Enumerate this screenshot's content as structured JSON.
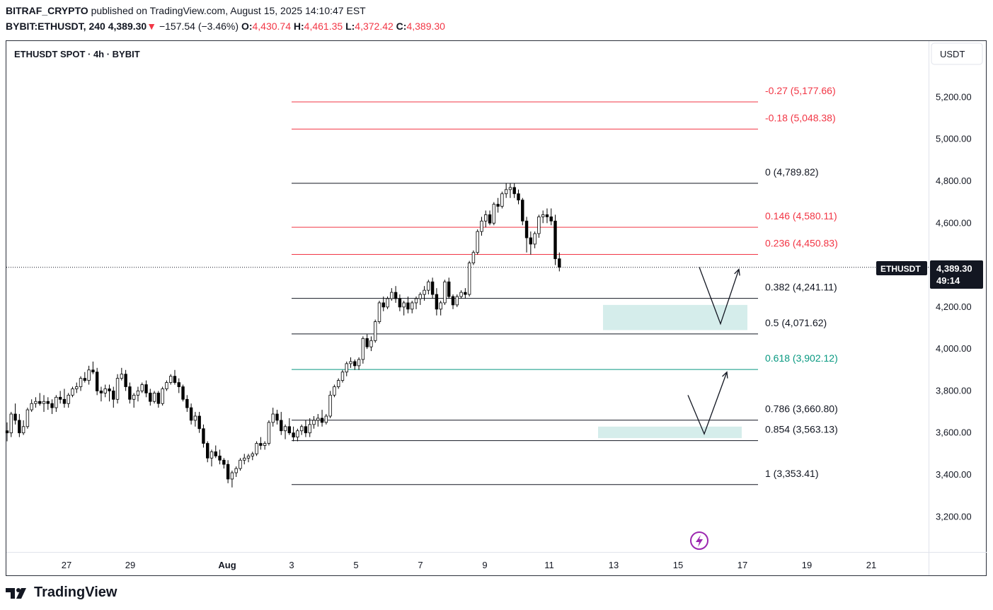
{
  "header": {
    "publisher": "BITRAF_CRYPTO",
    "published_text": "published on TradingView.com, August 15, 2025 14:10:47 EST",
    "symbol": "BYBIT:ETHUSDT, 240",
    "last": "4,389.30",
    "change_arrow": "▼",
    "change": "−157.54 (−3.46%)",
    "o_label": "O:",
    "o": "4,430.74",
    "h_label": "H:",
    "h": "4,461.35",
    "l_label": "L:",
    "l": "4,372.42",
    "c_label": "C:",
    "c": "4,389.30"
  },
  "legend_title": "ETHUSDT SPOT · 4h · BYBIT",
  "currency_button": "USDT",
  "price_tag": {
    "symbol": "ETHUSDT",
    "price": "4,389.30",
    "countdown": "49:14"
  },
  "footer": {
    "brand": "TradingView"
  },
  "colors": {
    "up": "#ffffff",
    "down": "#000000",
    "fib_black": "#131722",
    "fib_red": "#f23645",
    "fib_teal": "#089981",
    "zone": "#b2dfdb",
    "accent": "#9c27b0"
  },
  "icons": [
    "tradingview-logo-icon",
    "lightning-icon"
  ],
  "chart_data": {
    "type": "candlestick",
    "timeframe": "4h",
    "y_range": [
      3110,
      5330
    ],
    "y_ticks": [
      {
        "value": 3200,
        "label": "3,200.00"
      },
      {
        "value": 3400,
        "label": "3,400.00"
      },
      {
        "value": 3600,
        "label": "3,600.00"
      },
      {
        "value": 3800,
        "label": "3,800.00"
      },
      {
        "value": 4000,
        "label": "4,000.00"
      },
      {
        "value": 4200,
        "label": "4,200.00"
      },
      {
        "value": 4400,
        "label": ""
      },
      {
        "value": 4600,
        "label": "4,600.00"
      },
      {
        "value": 4800,
        "label": "4,800.00"
      },
      {
        "value": 5000,
        "label": "5,000.00"
      },
      {
        "value": 5200,
        "label": "5,200.00"
      }
    ],
    "x_ticks": [
      {
        "label": "27",
        "bold": false
      },
      {
        "label": "29",
        "bold": false
      },
      {
        "label": "Aug",
        "bold": true
      },
      {
        "label": "3",
        "bold": false
      },
      {
        "label": "5",
        "bold": false
      },
      {
        "label": "7",
        "bold": false
      },
      {
        "label": "9",
        "bold": false
      },
      {
        "label": "11",
        "bold": false
      },
      {
        "label": "13",
        "bold": false
      },
      {
        "label": "15",
        "bold": false
      },
      {
        "label": "17",
        "bold": false
      },
      {
        "label": "19",
        "bold": false
      },
      {
        "label": "21",
        "bold": false
      }
    ],
    "last_price": 4389.3,
    "fib_levels": [
      {
        "label": "-0.27 (5,177.66)",
        "value": 5177.66,
        "color": "red"
      },
      {
        "label": "-0.18 (5,048.38)",
        "value": 5048.38,
        "color": "red"
      },
      {
        "label": "0 (4,789.82)",
        "value": 4789.82,
        "color": "black"
      },
      {
        "label": "0.146 (4,580.11)",
        "value": 4580.11,
        "color": "red"
      },
      {
        "label": "0.236 (4,450.83)",
        "value": 4450.83,
        "color": "red"
      },
      {
        "label": "0.382 (4,241.11)",
        "value": 4241.11,
        "color": "black"
      },
      {
        "label": "0.5 (4,071.62)",
        "value": 4071.62,
        "color": "black"
      },
      {
        "label": "0.618 (3,902.12)",
        "value": 3902.12,
        "color": "teal"
      },
      {
        "label": "0.786 (3,660.80)",
        "value": 3660.8,
        "color": "black"
      },
      {
        "label": "0.854 (3,563.13)",
        "value": 3563.13,
        "color": "black"
      },
      {
        "label": "1 (3,353.41)",
        "value": 3353.41,
        "color": "black"
      }
    ],
    "zones": [
      {
        "top": 4210,
        "bottom": 4090
      },
      {
        "top": 3630,
        "bottom": 3575
      }
    ],
    "projections": [
      {
        "points": [
          [
            4390,
            0
          ],
          [
            4120,
            1
          ],
          [
            4380,
            2
          ]
        ]
      },
      {
        "points": [
          [
            3780,
            0
          ],
          [
            3595,
            1
          ],
          [
            3890,
            2
          ]
        ]
      }
    ],
    "candles": [
      [
        3610,
        3650,
        3560,
        3600
      ],
      [
        3600,
        3700,
        3580,
        3690
      ],
      [
        3690,
        3740,
        3640,
        3660
      ],
      [
        3660,
        3690,
        3580,
        3600
      ],
      [
        3600,
        3660,
        3590,
        3630
      ],
      [
        3630,
        3720,
        3620,
        3710
      ],
      [
        3710,
        3760,
        3700,
        3740
      ],
      [
        3740,
        3770,
        3720,
        3750
      ],
      [
        3750,
        3790,
        3730,
        3740
      ],
      [
        3740,
        3780,
        3700,
        3750
      ],
      [
        3750,
        3770,
        3710,
        3740
      ],
      [
        3740,
        3760,
        3690,
        3720
      ],
      [
        3720,
        3780,
        3700,
        3770
      ],
      [
        3770,
        3800,
        3740,
        3760
      ],
      [
        3760,
        3810,
        3720,
        3740
      ],
      [
        3740,
        3790,
        3720,
        3780
      ],
      [
        3780,
        3820,
        3770,
        3810
      ],
      [
        3810,
        3840,
        3790,
        3820
      ],
      [
        3820,
        3870,
        3800,
        3860
      ],
      [
        3860,
        3890,
        3840,
        3850
      ],
      [
        3850,
        3920,
        3830,
        3900
      ],
      [
        3900,
        3940,
        3880,
        3890
      ],
      [
        3890,
        3910,
        3780,
        3800
      ],
      [
        3800,
        3820,
        3750,
        3790
      ],
      [
        3790,
        3830,
        3770,
        3810
      ],
      [
        3810,
        3830,
        3750,
        3800
      ],
      [
        3800,
        3820,
        3720,
        3760
      ],
      [
        3760,
        3880,
        3740,
        3860
      ],
      [
        3860,
        3910,
        3850,
        3880
      ],
      [
        3880,
        3900,
        3800,
        3820
      ],
      [
        3820,
        3840,
        3740,
        3760
      ],
      [
        3760,
        3790,
        3720,
        3780
      ],
      [
        3780,
        3820,
        3750,
        3800
      ],
      [
        3800,
        3840,
        3790,
        3830
      ],
      [
        3830,
        3850,
        3770,
        3790
      ],
      [
        3790,
        3810,
        3730,
        3750
      ],
      [
        3750,
        3800,
        3740,
        3790
      ],
      [
        3790,
        3800,
        3720,
        3740
      ],
      [
        3740,
        3820,
        3730,
        3810
      ],
      [
        3810,
        3850,
        3800,
        3840
      ],
      [
        3840,
        3880,
        3830,
        3870
      ],
      [
        3870,
        3900,
        3830,
        3840
      ],
      [
        3840,
        3860,
        3790,
        3820
      ],
      [
        3820,
        3830,
        3750,
        3760
      ],
      [
        3760,
        3780,
        3700,
        3720
      ],
      [
        3720,
        3740,
        3640,
        3660
      ],
      [
        3660,
        3700,
        3630,
        3680
      ],
      [
        3680,
        3700,
        3600,
        3620
      ],
      [
        3620,
        3640,
        3530,
        3550
      ],
      [
        3550,
        3560,
        3460,
        3480
      ],
      [
        3480,
        3520,
        3440,
        3510
      ],
      [
        3510,
        3540,
        3480,
        3490
      ],
      [
        3490,
        3520,
        3450,
        3470
      ],
      [
        3470,
        3480,
        3430,
        3450
      ],
      [
        3450,
        3470,
        3360,
        3380
      ],
      [
        3380,
        3420,
        3340,
        3410
      ],
      [
        3410,
        3440,
        3390,
        3430
      ],
      [
        3430,
        3480,
        3420,
        3470
      ],
      [
        3470,
        3500,
        3450,
        3480
      ],
      [
        3480,
        3500,
        3460,
        3490
      ],
      [
        3490,
        3510,
        3470,
        3500
      ],
      [
        3500,
        3560,
        3490,
        3550
      ],
      [
        3550,
        3580,
        3520,
        3540
      ],
      [
        3540,
        3560,
        3520,
        3550
      ],
      [
        3550,
        3660,
        3540,
        3650
      ],
      [
        3650,
        3720,
        3630,
        3690
      ],
      [
        3690,
        3710,
        3640,
        3660
      ],
      [
        3660,
        3700,
        3590,
        3610
      ],
      [
        3610,
        3640,
        3570,
        3630
      ],
      [
        3630,
        3670,
        3590,
        3600
      ],
      [
        3600,
        3630,
        3560,
        3580
      ],
      [
        3580,
        3620,
        3560,
        3610
      ],
      [
        3610,
        3640,
        3590,
        3630
      ],
      [
        3630,
        3660,
        3580,
        3600
      ],
      [
        3600,
        3670,
        3580,
        3640
      ],
      [
        3640,
        3680,
        3620,
        3660
      ],
      [
        3660,
        3690,
        3630,
        3670
      ],
      [
        3670,
        3710,
        3630,
        3650
      ],
      [
        3650,
        3690,
        3640,
        3680
      ],
      [
        3680,
        3800,
        3670,
        3780
      ],
      [
        3780,
        3830,
        3770,
        3820
      ],
      [
        3820,
        3860,
        3810,
        3850
      ],
      [
        3850,
        3900,
        3840,
        3890
      ],
      [
        3890,
        3940,
        3870,
        3930
      ],
      [
        3930,
        3960,
        3910,
        3940
      ],
      [
        3940,
        3950,
        3900,
        3920
      ],
      [
        3920,
        3960,
        3900,
        3950
      ],
      [
        3950,
        4060,
        3930,
        4050
      ],
      [
        4050,
        4070,
        4000,
        4010
      ],
      [
        4010,
        4060,
        3990,
        4040
      ],
      [
        4040,
        4140,
        4030,
        4130
      ],
      [
        4130,
        4230,
        4120,
        4220
      ],
      [
        4220,
        4250,
        4180,
        4200
      ],
      [
        4200,
        4250,
        4190,
        4240
      ],
      [
        4240,
        4290,
        4230,
        4270
      ],
      [
        4270,
        4300,
        4220,
        4240
      ],
      [
        4240,
        4260,
        4180,
        4200
      ],
      [
        4200,
        4230,
        4160,
        4220
      ],
      [
        4220,
        4250,
        4170,
        4190
      ],
      [
        4190,
        4230,
        4170,
        4220
      ],
      [
        4220,
        4250,
        4190,
        4240
      ],
      [
        4240,
        4270,
        4210,
        4260
      ],
      [
        4260,
        4300,
        4230,
        4280
      ],
      [
        4280,
        4330,
        4260,
        4320
      ],
      [
        4320,
        4340,
        4240,
        4260
      ],
      [
        4260,
        4290,
        4160,
        4190
      ],
      [
        4190,
        4230,
        4160,
        4220
      ],
      [
        4220,
        4330,
        4210,
        4320
      ],
      [
        4320,
        4340,
        4240,
        4250
      ],
      [
        4250,
        4260,
        4190,
        4210
      ],
      [
        4210,
        4260,
        4200,
        4250
      ],
      [
        4250,
        4280,
        4240,
        4270
      ],
      [
        4270,
        4290,
        4240,
        4260
      ],
      [
        4260,
        4420,
        4250,
        4410
      ],
      [
        4410,
        4470,
        4400,
        4460
      ],
      [
        4460,
        4570,
        4450,
        4560
      ],
      [
        4560,
        4630,
        4540,
        4610
      ],
      [
        4610,
        4660,
        4580,
        4640
      ],
      [
        4640,
        4660,
        4590,
        4600
      ],
      [
        4600,
        4700,
        4590,
        4690
      ],
      [
        4690,
        4720,
        4650,
        4680
      ],
      [
        4680,
        4750,
        4670,
        4740
      ],
      [
        4740,
        4790,
        4720,
        4760
      ],
      [
        4760,
        4790,
        4720,
        4770
      ],
      [
        4770,
        4790,
        4720,
        4740
      ],
      [
        4740,
        4760,
        4690,
        4710
      ],
      [
        4710,
        4720,
        4590,
        4610
      ],
      [
        4610,
        4630,
        4460,
        4530
      ],
      [
        4530,
        4560,
        4450,
        4500
      ],
      [
        4500,
        4560,
        4480,
        4550
      ],
      [
        4550,
        4640,
        4530,
        4630
      ],
      [
        4630,
        4660,
        4600,
        4640
      ],
      [
        4640,
        4670,
        4600,
        4630
      ],
      [
        4630,
        4670,
        4590,
        4610
      ],
      [
        4610,
        4640,
        4400,
        4430
      ],
      [
        4430,
        4460,
        4370,
        4390
      ]
    ]
  }
}
